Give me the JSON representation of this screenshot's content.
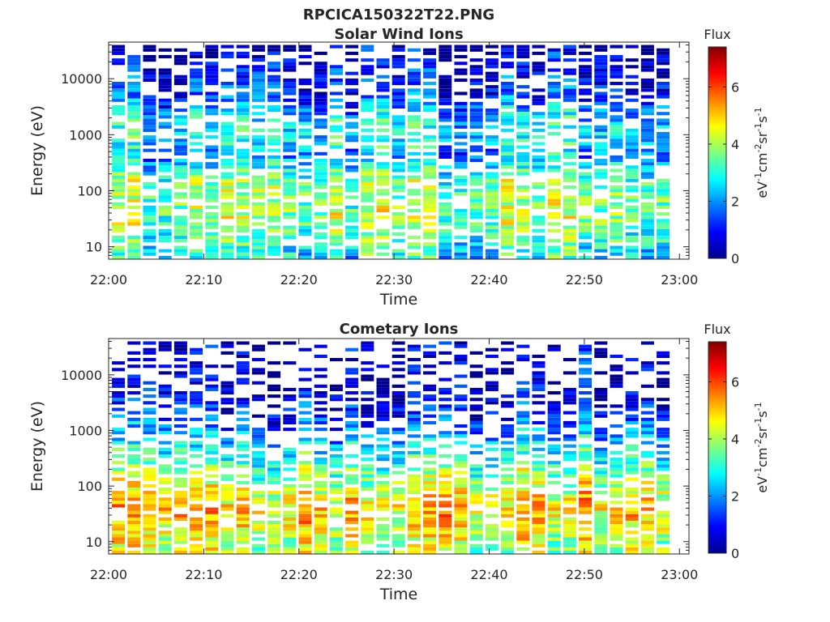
{
  "figure": {
    "title": "RPCICA150322T22.PNG"
  },
  "chart_data": [
    {
      "type": "heatmap",
      "title": "Solar Wind Ions",
      "xlabel": "Time",
      "ylabel": "Energy (eV)",
      "x_ticks": [
        "22:00",
        "22:10",
        "22:20",
        "22:30",
        "22:40",
        "22:50",
        "23:00"
      ],
      "y_ticks": [
        "10",
        "100",
        "1000",
        "10000"
      ],
      "y_scale": "log",
      "ylim": [
        6,
        45000
      ],
      "xlim": [
        "22:00",
        "23:01"
      ],
      "colorbar": {
        "title": "Flux",
        "label_parts": [
          "eV",
          "-1",
          "cm",
          "-2",
          "sr",
          "-1",
          "s",
          "-1"
        ],
        "ticks": [
          "0",
          "2",
          "4",
          "6"
        ],
        "range": [
          0,
          7.4
        ],
        "colormap": "jet"
      },
      "profile": {
        "bands": [
          [
            8,
            2.8
          ],
          [
            30,
            3.8
          ],
          [
            150,
            3.6
          ],
          [
            400,
            2.0
          ],
          [
            900,
            2.8
          ],
          [
            2000,
            2.4
          ],
          [
            5000,
            1.3
          ],
          [
            30000,
            0.5
          ]
        ],
        "coverage_low": 0.8,
        "coverage_high": 0.6
      }
    },
    {
      "type": "heatmap",
      "title": "Cometary Ions",
      "xlabel": "Time",
      "ylabel": "Energy (eV)",
      "x_ticks": [
        "22:00",
        "22:10",
        "22:20",
        "22:30",
        "22:40",
        "22:50",
        "23:00"
      ],
      "y_ticks": [
        "10",
        "100",
        "1000",
        "10000"
      ],
      "y_scale": "log",
      "ylim": [
        6,
        45000
      ],
      "xlim": [
        "22:00",
        "23:01"
      ],
      "colorbar": {
        "title": "Flux",
        "label_parts": [
          "eV",
          "-1",
          "cm",
          "-2",
          "sr",
          "-1",
          "s",
          "-1"
        ],
        "ticks": [
          "0",
          "2",
          "4",
          "6"
        ],
        "range": [
          0,
          7.4
        ],
        "colormap": "jet"
      },
      "profile": {
        "bands": [
          [
            10,
            4.2
          ],
          [
            40,
            5.2
          ],
          [
            100,
            4.2
          ],
          [
            300,
            3.2
          ],
          [
            1000,
            1.8
          ],
          [
            3000,
            1.0
          ],
          [
            8000,
            0.5
          ]
        ],
        "coverage_low": 0.9,
        "coverage_high": 0.35
      }
    }
  ]
}
